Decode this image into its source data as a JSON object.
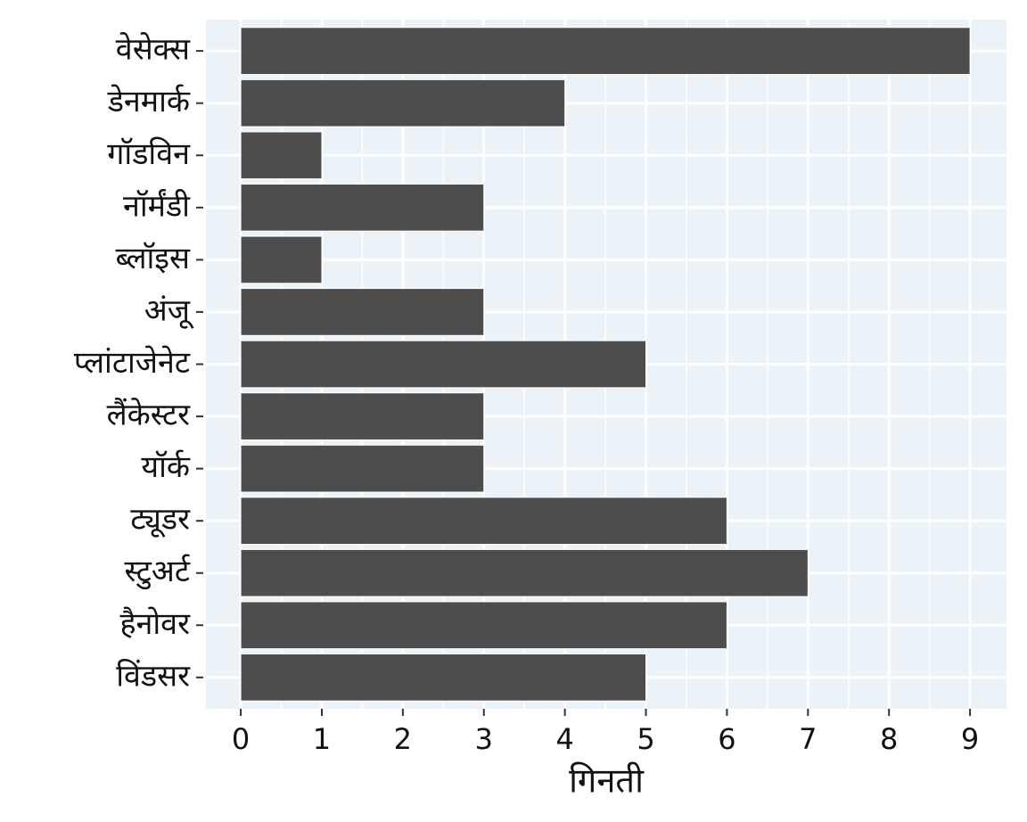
{
  "chart_data": {
    "type": "bar",
    "orientation": "horizontal",
    "x_label": "गिनती",
    "categories": [
      "वेसेक्स",
      "डेनमार्क",
      "गॉडविन",
      "नॉर्मंडी",
      "ब्लॉइस",
      "अंजू",
      "प्लांटाजेनेट",
      "लैंकेस्टर",
      "यॉर्क",
      "ट्यूडर",
      "स्टुअर्ट",
      "हैनोवर",
      "विंडसर"
    ],
    "values": [
      9,
      4,
      1,
      3,
      1,
      3,
      5,
      3,
      3,
      6,
      7,
      6,
      5
    ],
    "color": "#4d4d4d",
    "xlim": [
      -0.43,
      9.45
    ],
    "xticks": [
      0,
      1,
      2,
      3,
      4,
      5,
      6,
      7,
      8,
      9
    ],
    "grid": true
  }
}
